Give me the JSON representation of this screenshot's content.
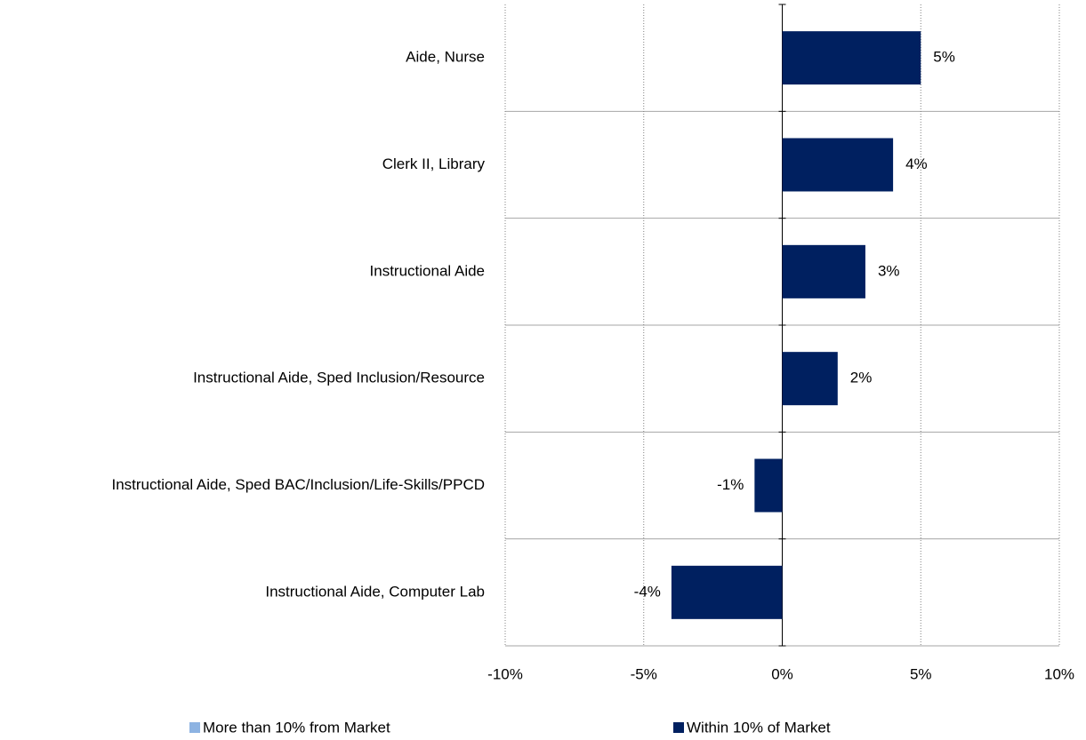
{
  "chart_data": {
    "type": "bar",
    "orientation": "horizontal",
    "categories": [
      "Aide, Nurse",
      "Clerk II, Library",
      "Instructional Aide",
      "Instructional Aide, Sped Inclusion/Resource",
      "Instructional Aide, Sped BAC/Inclusion/Life-Skills/PPCD",
      "Instructional Aide, Computer Lab"
    ],
    "series": [
      {
        "name": "More than 10% from Market",
        "color": "#8db3e2",
        "values": [
          null,
          null,
          null,
          null,
          null,
          null
        ]
      },
      {
        "name": "Within 10% of Market",
        "color": "#002060",
        "values": [
          5,
          4,
          3,
          2,
          -1,
          -4
        ],
        "value_labels": [
          "5%",
          "4%",
          "3%",
          "2%",
          "-1%",
          "-4%"
        ]
      }
    ],
    "xlim": [
      -10,
      10
    ],
    "xticks": [
      {
        "value": -10,
        "label": "-10%"
      },
      {
        "value": -5,
        "label": "-5%"
      },
      {
        "value": 0,
        "label": "0%"
      },
      {
        "value": 5,
        "label": "5%"
      },
      {
        "value": 10,
        "label": "10%"
      }
    ],
    "grid": true,
    "legend": "bottom"
  }
}
